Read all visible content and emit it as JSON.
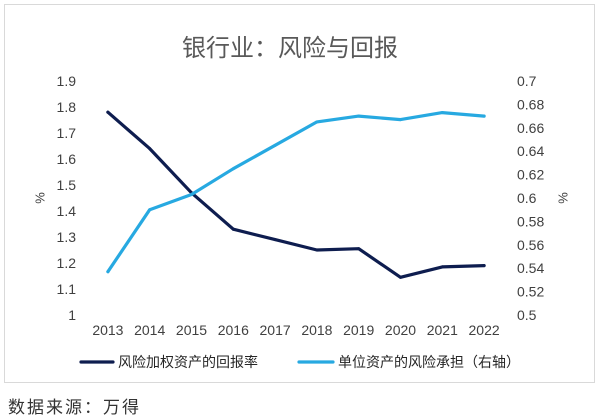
{
  "chart_data": {
    "type": "line",
    "title": "银行业：风险与回报",
    "categories": [
      "2013",
      "2014",
      "2015",
      "2016",
      "2017",
      "2018",
      "2019",
      "2020",
      "2021",
      "2022"
    ],
    "series": [
      {
        "name": "风险加权资产的回报率",
        "axis": "left",
        "color": "#0e1d4f",
        "values": [
          1.78,
          1.64,
          1.47,
          1.33,
          1.29,
          1.25,
          1.255,
          1.145,
          1.185,
          1.19
        ]
      },
      {
        "name": "单位资产的风险承担（右轴）",
        "axis": "right",
        "color": "#27a9e1",
        "values": [
          0.537,
          0.59,
          0.603,
          0.625,
          0.645,
          0.665,
          0.67,
          0.667,
          0.673,
          0.67
        ]
      }
    ],
    "ylabel": "%",
    "y2label": "%",
    "ylim": [
      1,
      1.9
    ],
    "y2lim": [
      0.5,
      0.7
    ],
    "yticks": [
      "1.9",
      "1.8",
      "1.7",
      "1.6",
      "1.5",
      "1.4",
      "1.3",
      "1.2",
      "1.1",
      "1"
    ],
    "y2ticks": [
      "0.7",
      "0.68",
      "0.66",
      "0.64",
      "0.62",
      "0.6",
      "0.58",
      "0.56",
      "0.54",
      "0.52",
      "0.5"
    ],
    "grid": false,
    "legend_position": "bottom"
  },
  "source": "数据来源：万得"
}
